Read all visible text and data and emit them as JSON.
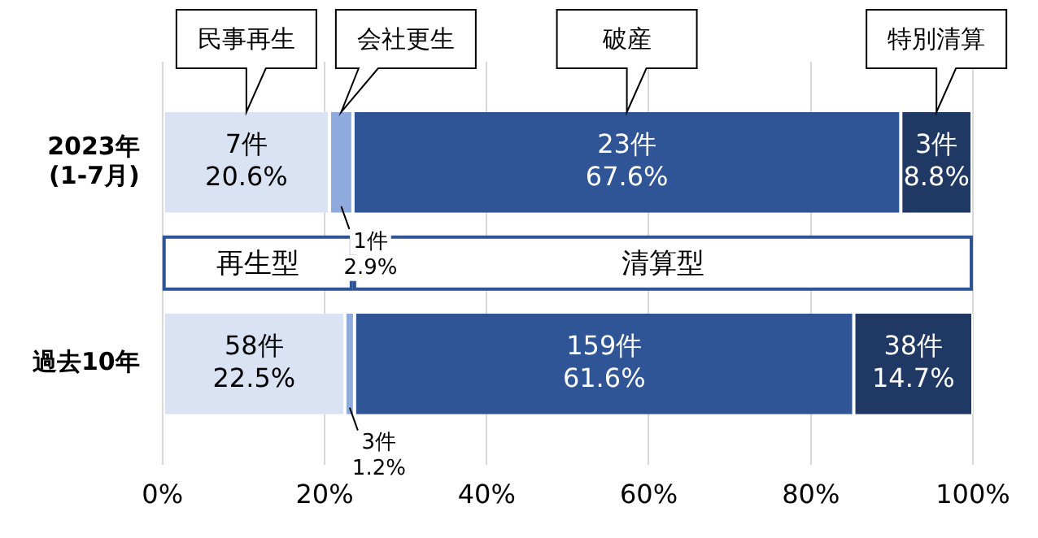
{
  "chart_data": {
    "type": "bar",
    "orientation": "horizontal",
    "stacked": true,
    "categories": [
      "2023年\n(1-7月)",
      "過去10年"
    ],
    "series": [
      {
        "name": "民事再生",
        "color": "#dae3f3",
        "values": [
          20.6,
          22.5
        ],
        "value_labels": [
          "7件\n20.6%",
          "58件\n22.5%"
        ]
      },
      {
        "name": "会社更生",
        "color": "#8faadc",
        "values": [
          2.9,
          1.2
        ],
        "value_labels": [
          "1件\n2.9%",
          "3件\n1.2%"
        ]
      },
      {
        "name": "破産",
        "color": "#2f5597",
        "values": [
          67.6,
          61.6
        ],
        "value_labels": [
          "23件\n67.6%",
          "159件\n61.6%"
        ]
      },
      {
        "name": "特別清算",
        "color": "#203864",
        "values": [
          8.8,
          14.7
        ],
        "value_labels": [
          "3件\n8.8%",
          "38件\n14.7%"
        ]
      }
    ],
    "xlim": [
      0,
      100
    ],
    "xticks": [
      {
        "value": 0,
        "label": "0%"
      },
      {
        "value": 20,
        "label": "20%"
      },
      {
        "value": 40,
        "label": "40%"
      },
      {
        "value": 60,
        "label": "60%"
      },
      {
        "value": 80,
        "label": "80%"
      },
      {
        "value": 100,
        "label": "100%"
      }
    ],
    "bands": [
      {
        "axis": "x",
        "from": 0,
        "to": 23.5,
        "label": "再生型"
      },
      {
        "axis": "x",
        "from": 23.5,
        "to": 100,
        "label": "清算型"
      }
    ],
    "grid": "x",
    "legend": "top"
  }
}
